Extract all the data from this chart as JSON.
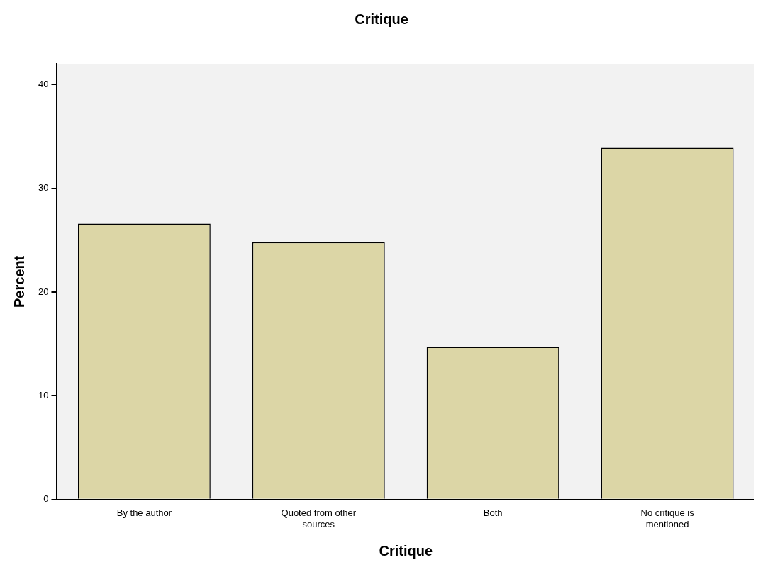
{
  "chart_data": {
    "type": "bar",
    "title": "Critique",
    "xlabel": "Critique",
    "ylabel": "Percent",
    "categories": [
      "By the author",
      "Quoted from other sources",
      "Both",
      "No critique is mentioned"
    ],
    "values": [
      26.6,
      24.8,
      14.7,
      33.9
    ],
    "color": "#dcd6a6",
    "ylim": [
      0,
      42
    ],
    "yticks": [
      0,
      10,
      20,
      30,
      40
    ],
    "grid": false,
    "legend": false
  }
}
